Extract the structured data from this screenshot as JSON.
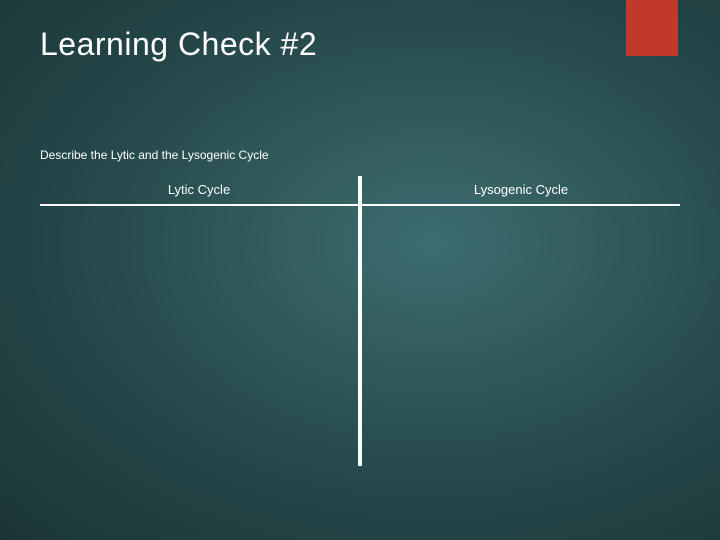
{
  "slide": {
    "title": "Learning Check #2",
    "subtitle": "Describe the Lytic and the Lysogenic Cycle",
    "accent_color": "#c0392b",
    "background_gradient": {
      "center": "#3d6d6f",
      "mid": "#2f5658",
      "outer": "#1a3537"
    },
    "title_color": "#ffffff",
    "title_fontsize": 32,
    "subtitle_fontsize": 12,
    "table": {
      "columns": [
        "Lytic Cycle",
        "Lysogenic Cycle"
      ],
      "divider_color": "#ffffff",
      "divider_width": 4,
      "header_underline_width": 1.5,
      "header_fontsize": 13
    }
  }
}
